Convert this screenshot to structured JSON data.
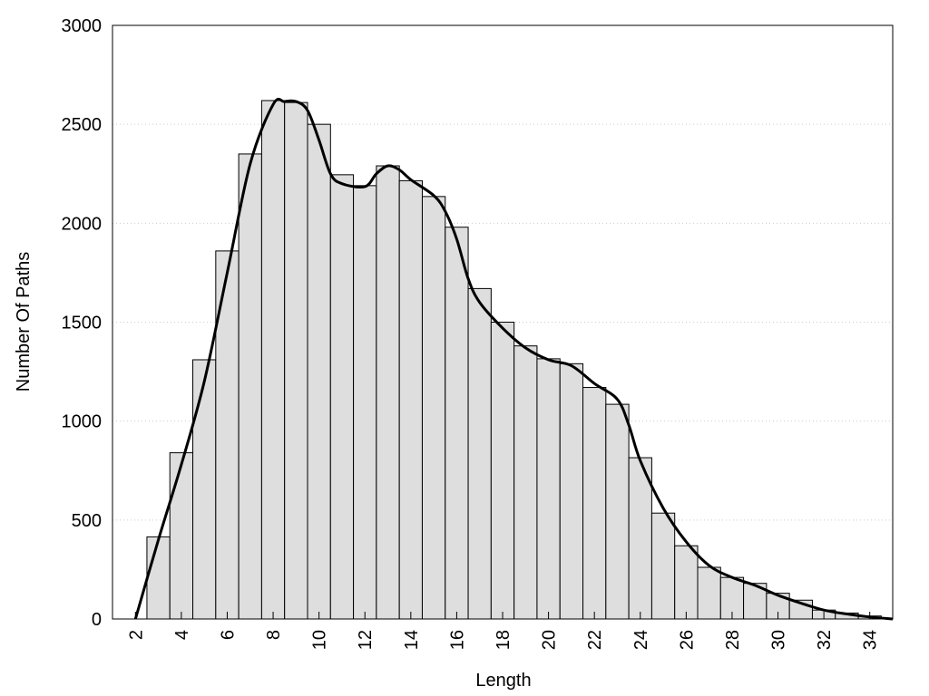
{
  "chart_data": {
    "type": "histogram",
    "xlabel": "Length",
    "ylabel": "Number Of Paths",
    "bins": [
      2.5,
      3.5,
      4.5,
      5.5,
      6.5,
      7.5,
      8.5,
      9.5,
      10.5,
      11.5,
      12.5,
      13.5,
      14.5,
      15.5,
      16.5,
      17.5,
      18.5,
      19.5,
      20.5,
      21.5,
      22.5,
      23.5,
      24.5,
      25.5,
      26.5,
      27.5,
      28.5,
      29.5,
      30.5,
      31.5,
      32.5,
      33.5,
      34.5
    ],
    "values": [
      415,
      840,
      1310,
      1860,
      2350,
      2620,
      2610,
      2500,
      2245,
      2190,
      2290,
      2215,
      2135,
      1980,
      1670,
      1500,
      1380,
      1315,
      1290,
      1170,
      1085,
      815,
      535,
      370,
      261,
      210,
      180,
      130,
      95,
      45,
      30,
      15
    ],
    "color": "#dedede",
    "line": {
      "color": "#000000",
      "x": [
        2,
        3,
        4,
        5,
        6,
        7,
        8,
        8.5,
        9,
        9.5,
        10,
        10.5,
        11,
        12,
        12.5,
        13,
        13.5,
        14,
        15,
        15.5,
        16,
        16.5,
        17,
        18,
        19,
        20,
        21,
        22,
        23,
        23.5,
        24,
        25,
        26,
        27,
        28,
        29,
        30,
        31,
        32,
        33,
        34,
        35
      ],
      "y": [
        0,
        400,
        780,
        1200,
        1750,
        2300,
        2600,
        2615,
        2615,
        2570,
        2420,
        2250,
        2200,
        2185,
        2250,
        2290,
        2270,
        2220,
        2140,
        2060,
        1920,
        1720,
        1600,
        1470,
        1370,
        1310,
        1280,
        1190,
        1110,
        980,
        800,
        560,
        390,
        270,
        210,
        170,
        120,
        80,
        45,
        25,
        10,
        0
      ]
    },
    "xlim": [
      1,
      35
    ],
    "xticks": [
      2,
      4,
      6,
      8,
      10,
      12,
      14,
      16,
      18,
      20,
      22,
      24,
      26,
      28,
      30,
      32,
      34
    ],
    "ylim": [
      0,
      3000
    ],
    "yticks": [
      0,
      500,
      1000,
      1500,
      2000,
      2500,
      3000
    ],
    "grid": true
  }
}
